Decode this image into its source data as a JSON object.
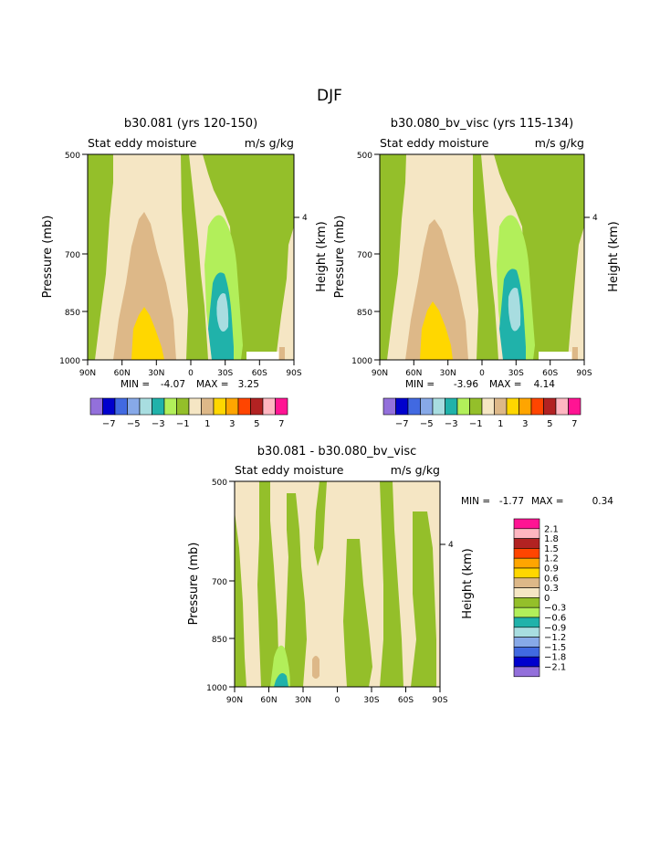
{
  "page_title": "DJF",
  "chart_data": [
    {
      "type": "heatmap",
      "title": "b30.081 (yrs 120-150)",
      "subtitle_left": "Stat eddy moisture",
      "subtitle_right": "m/s g/kg",
      "ylabel": "Pressure (mb)",
      "y2label": "Height (km)",
      "y2ticks": [
        "4"
      ],
      "xticks": [
        "90N",
        "60N",
        "30N",
        "0",
        "30S",
        "60S",
        "90S"
      ],
      "yticks": [
        "500",
        "700",
        "850",
        "1000"
      ],
      "stats": {
        "min_label": "MIN =",
        "min": "-4.07",
        "max_label": "MAX =",
        "max": "3.25"
      },
      "contour_levels": [
        "-7",
        "-5",
        "-3",
        "-1",
        "1",
        "3",
        "5",
        "7"
      ]
    },
    {
      "type": "heatmap",
      "title": "b30.080_bv_visc (yrs 115-134)",
      "subtitle_left": "Stat eddy moisture",
      "subtitle_right": "m/s g/kg",
      "ylabel": "Pressure (mb)",
      "y2label": "Height (km)",
      "y2ticks": [
        "4"
      ],
      "xticks": [
        "90N",
        "60N",
        "30N",
        "0",
        "30S",
        "60S",
        "90S"
      ],
      "yticks": [
        "500",
        "700",
        "850",
        "1000"
      ],
      "stats": {
        "min_label": "MIN =",
        "min": "-3.96",
        "max_label": "MAX =",
        "max": "4.14"
      },
      "contour_levels": [
        "-7",
        "-5",
        "-3",
        "-1",
        "1",
        "3",
        "5",
        "7"
      ]
    },
    {
      "type": "heatmap",
      "title": "b30.081 - b30.080_bv_visc",
      "subtitle_left": "Stat eddy moisture",
      "subtitle_right": "m/s g/kg",
      "ylabel": "Pressure (mb)",
      "y2label": "Height (km)",
      "y2ticks": [
        "4"
      ],
      "xticks": [
        "90N",
        "60N",
        "30N",
        "0",
        "30S",
        "60S",
        "90S"
      ],
      "yticks": [
        "500",
        "700",
        "850",
        "1000"
      ],
      "stats": {
        "min_label": "MIN =",
        "min": "-1.77",
        "max_label": "MAX =",
        "max": "0.34"
      },
      "contour_levels": [
        "2.1",
        "1.8",
        "1.5",
        "1.2",
        "0.9",
        "0.6",
        "0.3",
        "0",
        "-0.3",
        "-0.6",
        "-0.9",
        "-1.2",
        "-1.5",
        "-1.8",
        "-2.1"
      ]
    }
  ],
  "colorbar_colors": [
    "#9370db",
    "#0000cd",
    "#4169e1",
    "#87a9e8",
    "#a8dde0",
    "#20b2aa",
    "#b2ef5a",
    "#94bf2a",
    "#f5e6c4",
    "#ddb888",
    "#ffd700",
    "#ffa500",
    "#ff4500",
    "#b22222",
    "#ffb6c1",
    "#ff1493"
  ],
  "diff_colorbar_colors": [
    "#ff1493",
    "#ffb6c1",
    "#b22222",
    "#ff4500",
    "#ffa500",
    "#ffd700",
    "#ddb888",
    "#f5e6c4",
    "#94bf2a",
    "#b2ef5a",
    "#20b2aa",
    "#a8dde0",
    "#87a9e8",
    "#4169e1",
    "#0000cd",
    "#9370db"
  ]
}
